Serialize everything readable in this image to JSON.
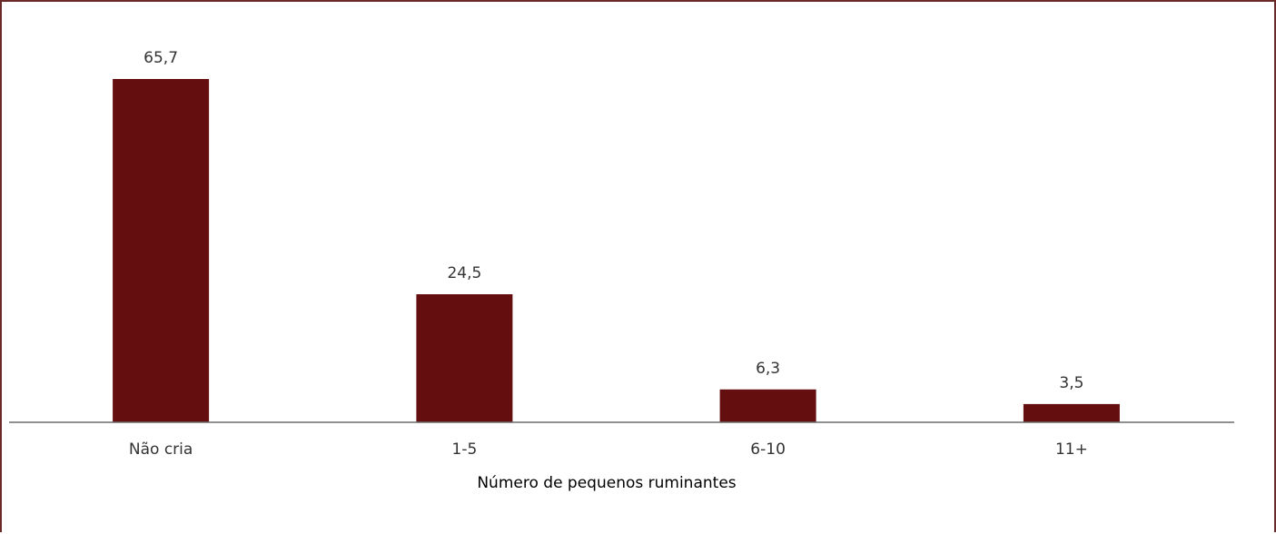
{
  "chart_data": {
    "type": "bar",
    "categories": [
      "Não cria",
      "1-5",
      "6-10",
      "11+"
    ],
    "values": [
      65.7,
      24.5,
      6.3,
      3.5
    ],
    "value_labels": [
      "65,7",
      "24,5",
      "6,3",
      "3,5"
    ],
    "title": "",
    "xlabel": "Número de pequenos ruminantes",
    "ylabel": "",
    "ylim": [
      0,
      70
    ],
    "grid": false,
    "legend": "none",
    "bar_color": "#640e10"
  }
}
